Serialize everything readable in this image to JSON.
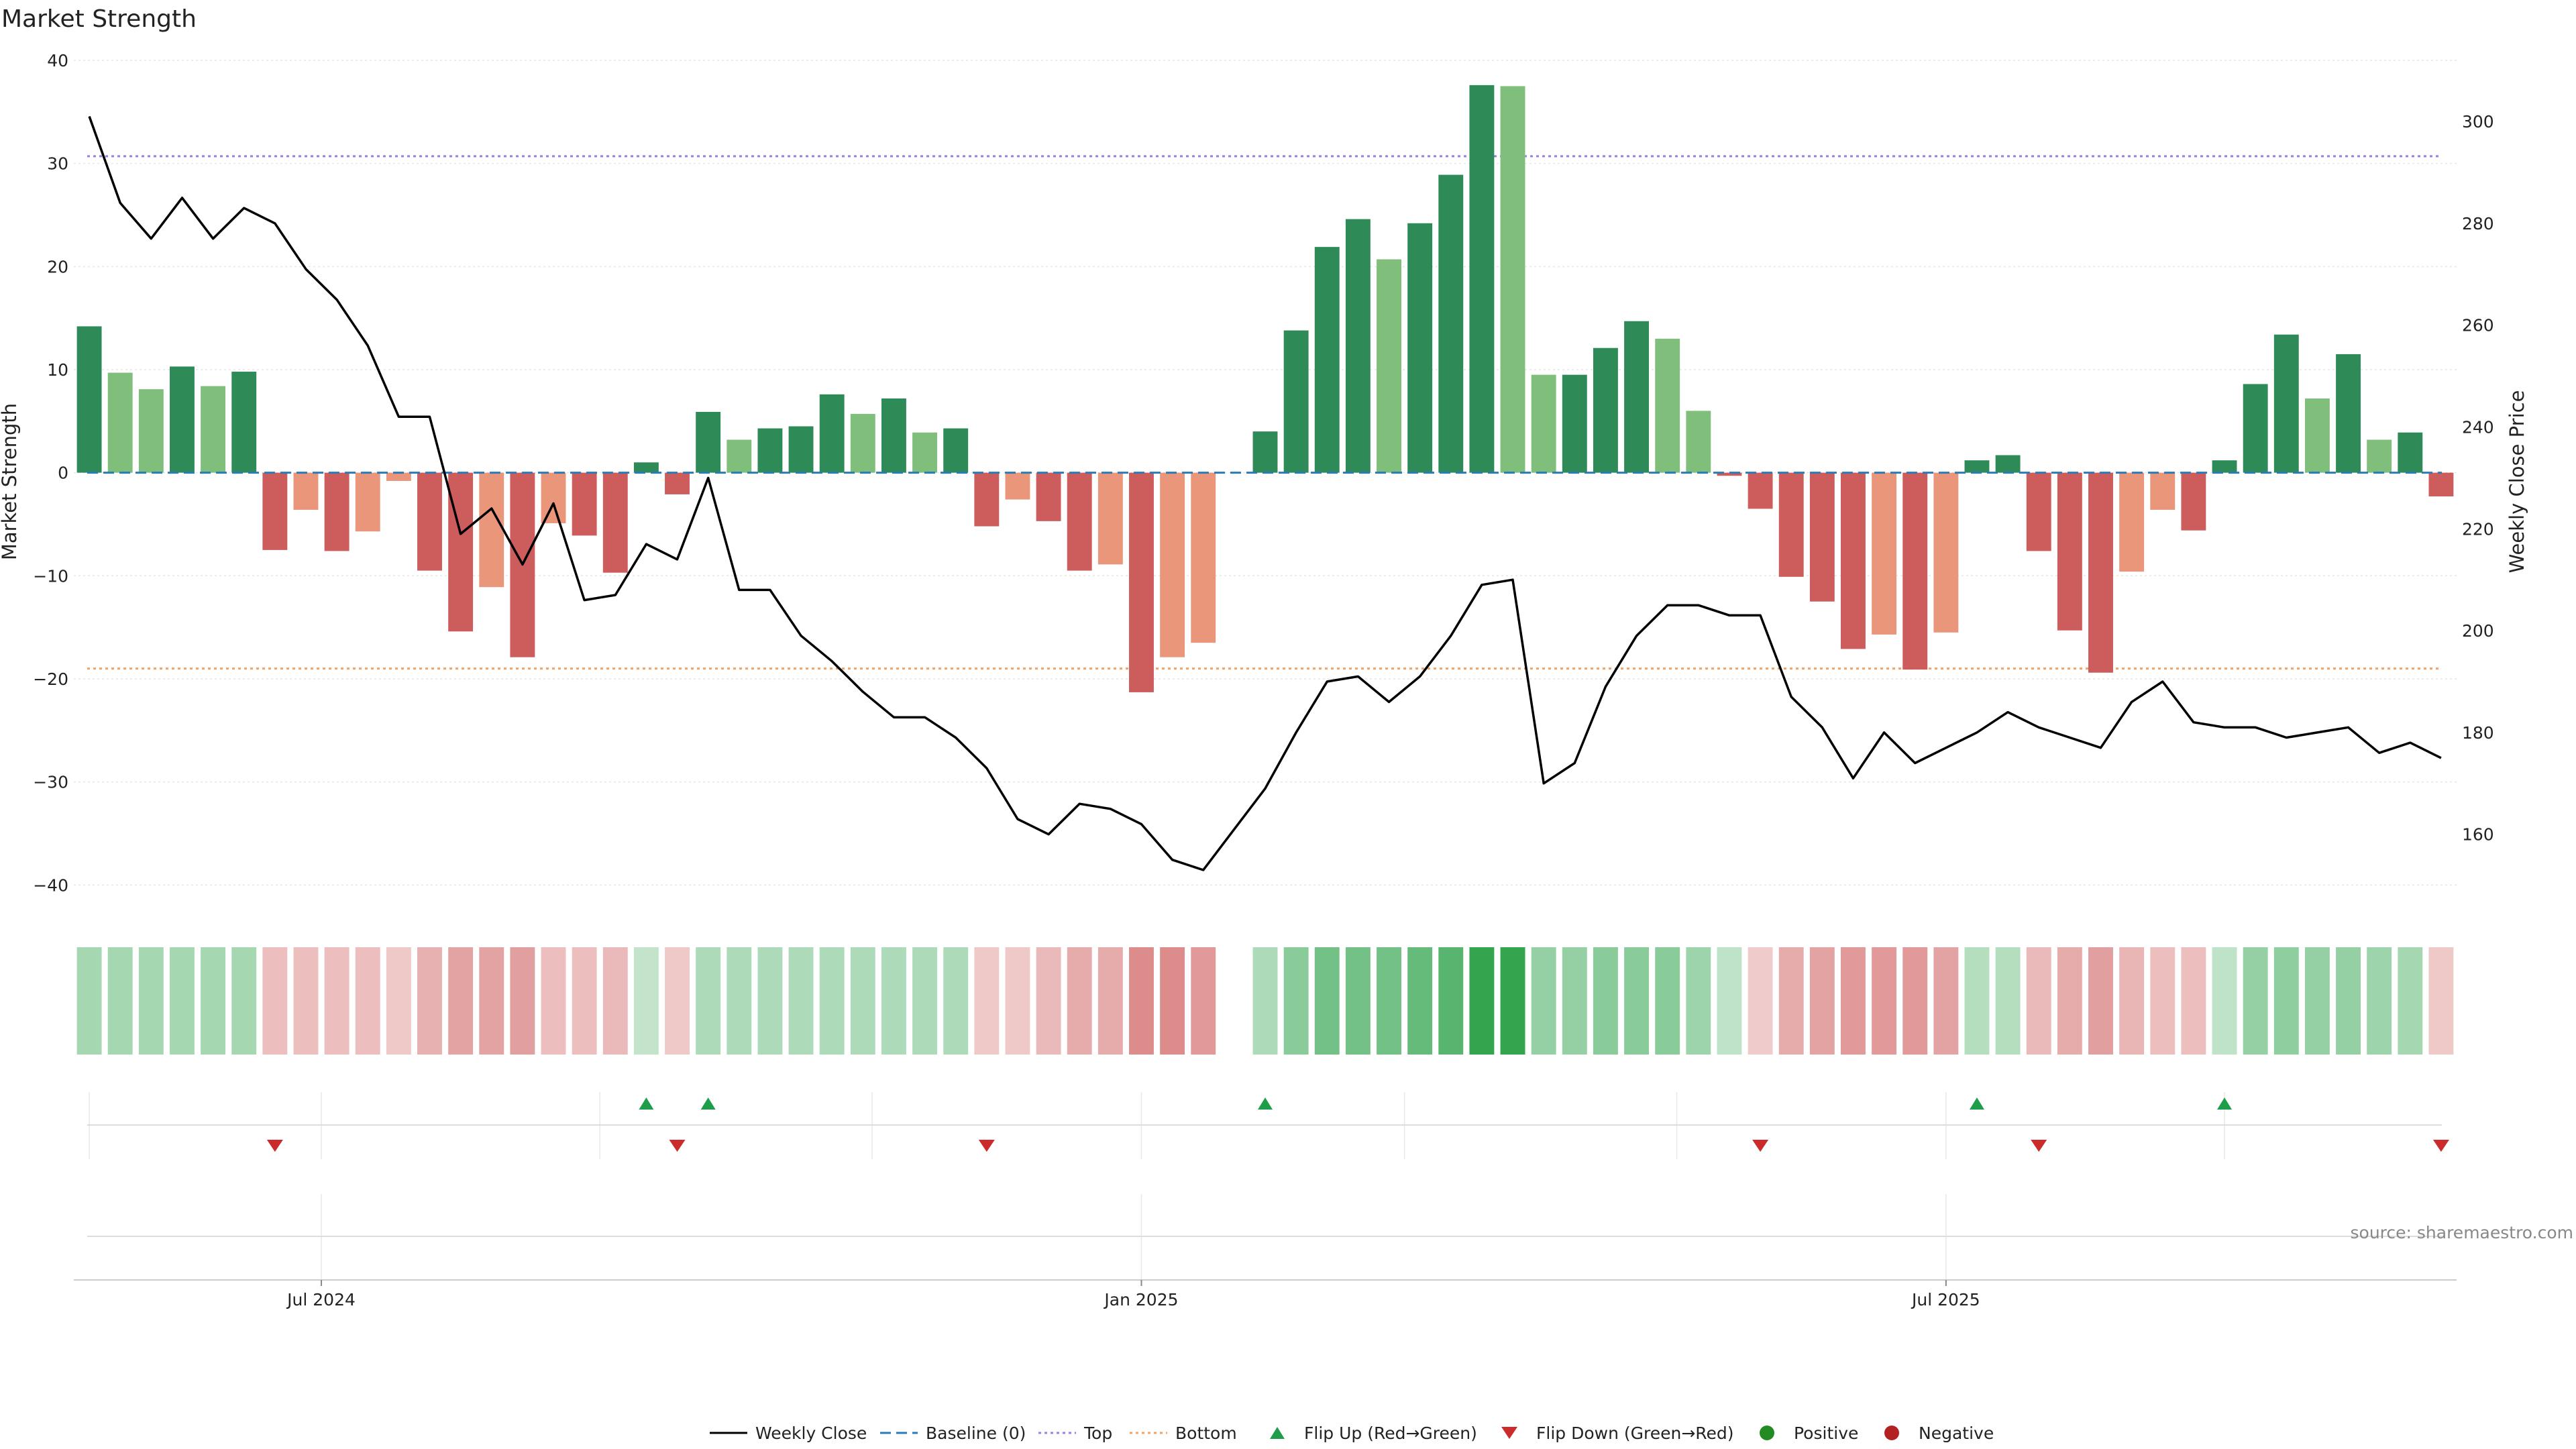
{
  "chart_data": {
    "type": "bar",
    "title": "Market Strength",
    "ylabel": "Market Strength",
    "y2label": "Weekly Close Price",
    "ylim": [
      -42,
      40
    ],
    "y2lim": [
      146,
      312
    ],
    "y_ticks": [
      40,
      30,
      20,
      10,
      0,
      -10,
      -20,
      -30,
      -40
    ],
    "y_tick_labels": [
      "40",
      "30",
      "20",
      "10",
      "0",
      "−10",
      "−20",
      "−30",
      "−40"
    ],
    "y2_ticks": [
      300,
      280,
      260,
      240,
      220,
      200,
      180,
      160
    ],
    "y2_tick_labels": [
      "300",
      "280",
      "260",
      "240",
      "220",
      "200",
      "180",
      "160"
    ],
    "x_tick_labels": [
      {
        "label": "Jul 2024",
        "week": 7.5
      },
      {
        "label": "Jan 2025",
        "week": 34
      },
      {
        "label": "Jul 2025",
        "week": 60
      }
    ],
    "top_level": 30.7,
    "bottom_level": -19,
    "top_color": "#9b7fe0",
    "bottom_color": "#f0a366",
    "baseline_color": "#2b7bb9",
    "line_color": "#000000",
    "positive_color": "#2e8b57",
    "positive_light_color": "#7fbf7b",
    "negative_color": "#cd5c5c",
    "negative_light_color": "#e9967a",
    "bar_values": [
      14.2,
      9.7,
      8.1,
      10.3,
      8.4,
      9.8,
      -7.5,
      -3.6,
      -7.6,
      -5.7,
      -0.8,
      -9.5,
      -15.4,
      -11.1,
      -17.9,
      -4.9,
      -6.1,
      -9.7,
      1.0,
      -2.1,
      5.9,
      3.2,
      4.3,
      4.5,
      7.6,
      5.7,
      7.2,
      3.9,
      4.3,
      -5.2,
      -2.6,
      -4.7,
      -9.5,
      -8.9,
      -21.3,
      -17.9,
      -16.5,
      null,
      4.0,
      13.8,
      21.9,
      24.6,
      20.7,
      24.2,
      28.9,
      37.6,
      37.5,
      9.5,
      9.5,
      12.1,
      14.7,
      13.0,
      6.0,
      -0.3,
      -3.5,
      -10.1,
      -12.5,
      -17.1,
      -15.7,
      -19.1,
      -15.5,
      1.2,
      1.7,
      -7.6,
      -15.3,
      -19.4,
      -9.6,
      -3.6,
      -5.6,
      1.2,
      8.6,
      13.4,
      7.2,
      11.5,
      3.2,
      3.9,
      -2.3
    ],
    "bar_shade": [
      "d",
      "l",
      "l",
      "d",
      "l",
      "d",
      "d",
      "l",
      "d",
      "l",
      "l",
      "d",
      "d",
      "l",
      "d",
      "l",
      "d",
      "d",
      "d",
      "d",
      "d",
      "l",
      "d",
      "d",
      "d",
      "l",
      "d",
      "l",
      "d",
      "d",
      "l",
      "d",
      "d",
      "l",
      "d",
      "l",
      "l",
      null,
      "d",
      "d",
      "d",
      "d",
      "l",
      "d",
      "d",
      "d",
      "l",
      "l",
      "d",
      "d",
      "d",
      "l",
      "l",
      "d",
      "d",
      "d",
      "d",
      "d",
      "l",
      "d",
      "l",
      "d",
      "d",
      "d",
      "d",
      "d",
      "l",
      "l",
      "d",
      "d",
      "d",
      "d",
      "l",
      "d",
      "l",
      "d",
      "d"
    ],
    "weekly_close": [
      301,
      284,
      277,
      285,
      277,
      283,
      280,
      271,
      265,
      256,
      242,
      242,
      219,
      224,
      213,
      225,
      206,
      207,
      217,
      214,
      230,
      208,
      208,
      199,
      194,
      188,
      183,
      183,
      179,
      173,
      163,
      160,
      166,
      165,
      162,
      155,
      153,
      161,
      169,
      180,
      190,
      191,
      186,
      191,
      199,
      209,
      210,
      170,
      174,
      189,
      199,
      205,
      205,
      203,
      203,
      187,
      181,
      171,
      180,
      174,
      177,
      180,
      184,
      181,
      179,
      177,
      186,
      190,
      182,
      181,
      181,
      179,
      180,
      181,
      176,
      178,
      175
    ],
    "heat_strip": [
      0.42,
      0.42,
      0.42,
      0.42,
      0.42,
      0.42,
      -0.35,
      -0.35,
      -0.35,
      -0.35,
      -0.3,
      -0.42,
      -0.5,
      -0.5,
      -0.52,
      -0.35,
      -0.35,
      -0.38,
      0.28,
      -0.3,
      0.38,
      0.38,
      0.38,
      0.38,
      0.38,
      0.38,
      0.38,
      0.38,
      0.38,
      -0.3,
      -0.3,
      -0.38,
      -0.45,
      -0.45,
      -0.62,
      -0.62,
      -0.55,
      null,
      0.38,
      0.55,
      0.65,
      0.65,
      0.65,
      0.72,
      0.78,
      0.95,
      0.95,
      0.5,
      0.5,
      0.55,
      0.55,
      0.55,
      0.45,
      0.3,
      -0.28,
      -0.45,
      -0.5,
      -0.55,
      -0.55,
      -0.55,
      -0.5,
      0.35,
      0.35,
      -0.38,
      -0.45,
      -0.52,
      -0.4,
      -0.35,
      -0.35,
      0.3,
      0.5,
      0.52,
      0.5,
      0.5,
      0.45,
      0.42,
      -0.3
    ],
    "flip_up_weeks": [
      18,
      20,
      38,
      61,
      69
    ],
    "flip_down_weeks": [
      6,
      19,
      29,
      54,
      63,
      76
    ],
    "legend": [
      "Weekly Close",
      "Baseline (0)",
      "Top",
      "Bottom",
      "Flip Up (Red→Green)",
      "Flip Down (Green→Red)",
      "Positive",
      "Negative"
    ],
    "legend_placement": "bottom-center",
    "flip_up_color": "#1e9e4a",
    "flip_down_color": "#cc2b2b",
    "positive_marker_color": "#228b22",
    "negative_marker_color": "#b22222",
    "grid": true,
    "source": "source: sharemaestro.com"
  }
}
